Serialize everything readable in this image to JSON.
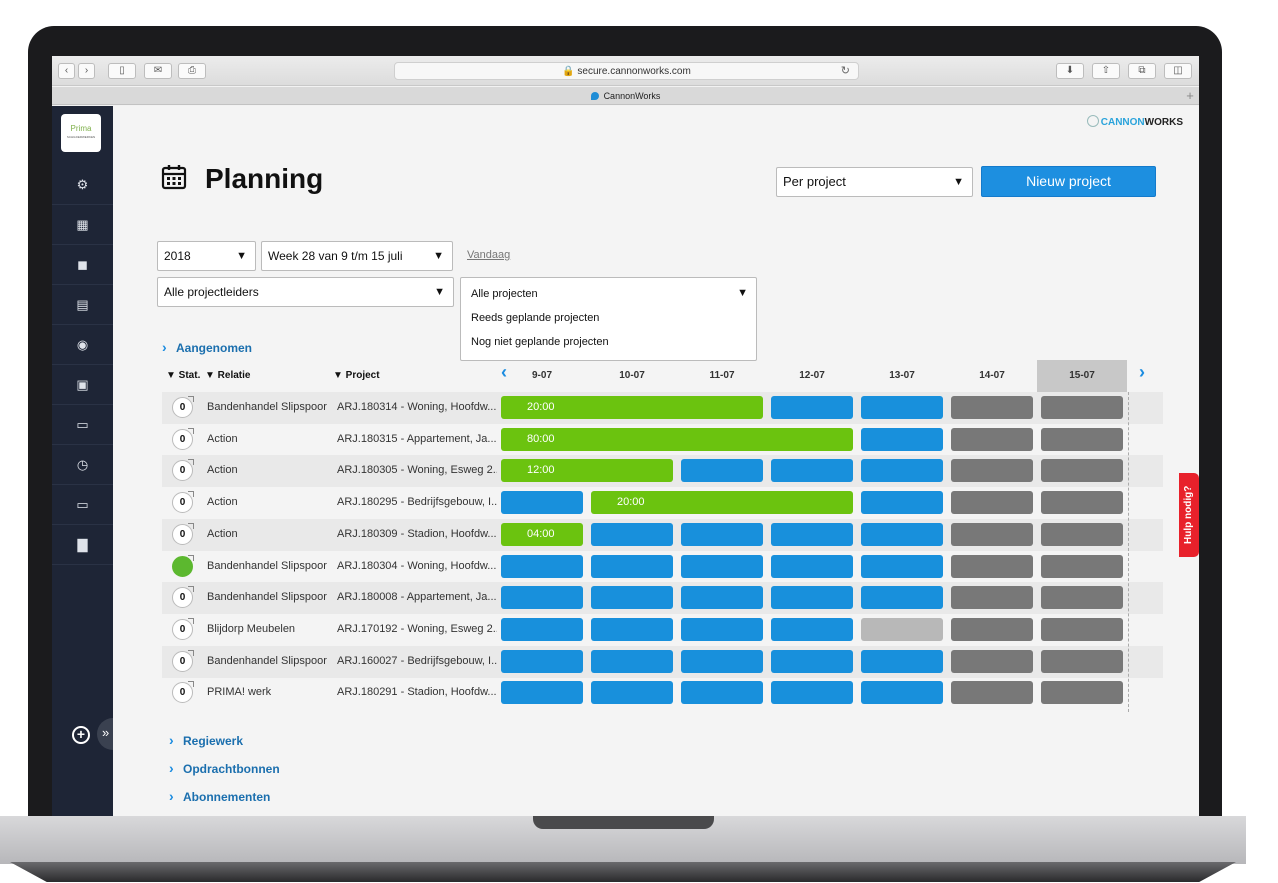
{
  "browser": {
    "url": "secure.cannonworks.com",
    "tab_title": "CannonWorks"
  },
  "brand": {
    "logo_text": "Prima",
    "logo_sub": "SCHILDERWERKEN",
    "company_prefix": "CANNON",
    "company_suffix": "WORKS"
  },
  "page": {
    "title": "Planning",
    "view_select": "Per project",
    "new_project_label": "Nieuw project",
    "today_link": "Vandaag",
    "help_label": "Hulp nodig?"
  },
  "filters": {
    "year": "2018",
    "week": "Week 28 van 9 t/m 15 juli",
    "project_leaders": "Alle projectleiders",
    "projects": {
      "selected": "Alle projecten",
      "options": [
        "Reeds geplande projecten",
        "Nog niet geplande projecten"
      ]
    }
  },
  "sections": {
    "aangenomen": "Aangenomen",
    "regiewerk": "Regiewerk",
    "opdrachtbonnen": "Opdrachtbonnen",
    "abonnementen": "Abonnementen"
  },
  "table": {
    "headers": {
      "stat": "▼ Stat.",
      "relatie": "▼ Relatie",
      "project": "▼ Project"
    },
    "days": [
      "9-07",
      "10-07",
      "11-07",
      "12-07",
      "13-07",
      "14-07",
      "15-07"
    ],
    "rows": [
      {
        "stat": "0",
        "relatie": "Bandenhandel Slipspoor",
        "project": "ARJ.180314 - Woning, Hoofdw...",
        "bar": "20:00"
      },
      {
        "stat": "0",
        "relatie": "Action",
        "project": "ARJ.180315 - Appartement, Ja...",
        "bar": "80:00"
      },
      {
        "stat": "0",
        "relatie": "Action",
        "project": "ARJ.180305 - Woning, Esweg 2...",
        "bar": "12:00"
      },
      {
        "stat": "0",
        "relatie": "Action",
        "project": "ARJ.180295 - Bedrijfsgebouw, I...",
        "bar": "20:00"
      },
      {
        "stat": "0",
        "relatie": "Action",
        "project": "ARJ.180309 - Stadion, Hoofdw...",
        "bar": "04:00"
      },
      {
        "stat": "",
        "relatie": "Bandenhandel Slipspoor",
        "project": "ARJ.180304 - Woning, Hoofdw...",
        "bar": ""
      },
      {
        "stat": "0",
        "relatie": "Bandenhandel Slipspoor",
        "project": "ARJ.180008 - Appartement, Ja...",
        "bar": ""
      },
      {
        "stat": "0",
        "relatie": "Blijdorp Meubelen",
        "project": "ARJ.170192 - Woning, Esweg 2...",
        "bar": ""
      },
      {
        "stat": "0",
        "relatie": "Bandenhandel Slipspoor",
        "project": "ARJ.160027 - Bedrijfsgebouw, I...",
        "bar": ""
      },
      {
        "stat": "0",
        "relatie": "PRIMA! werk",
        "project": "ARJ.180291 - Stadion, Hoofdw...",
        "bar": ""
      }
    ]
  },
  "colors": {
    "planned": "#6bc30f",
    "available": "#1890dc",
    "weekend": "#787878",
    "accent": "#1d8fe0",
    "help": "#e8212b"
  }
}
